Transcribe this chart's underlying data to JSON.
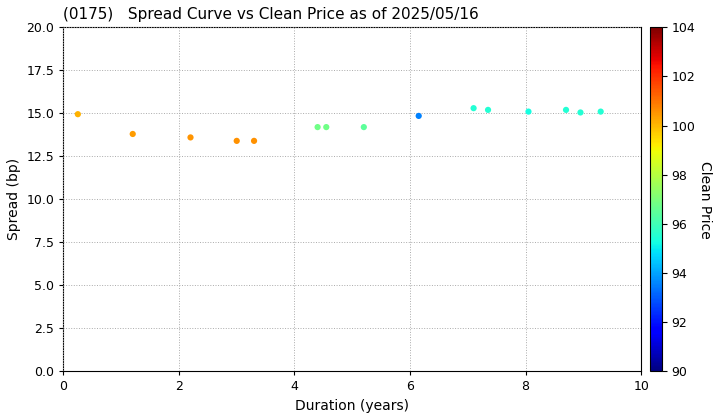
{
  "title": "(0175)   Spread Curve vs Clean Price as of 2025/05/16",
  "xlabel": "Duration (years)",
  "ylabel": "Spread (bp)",
  "colorbar_label": "Clean Price",
  "xlim": [
    0,
    10
  ],
  "ylim": [
    0.0,
    20.0
  ],
  "yticks": [
    0.0,
    2.5,
    5.0,
    7.5,
    10.0,
    12.5,
    15.0,
    17.5,
    20.0
  ],
  "xticks": [
    0,
    2,
    4,
    6,
    8,
    10
  ],
  "colorbar_min": 90,
  "colorbar_max": 104,
  "colorbar_ticks": [
    90,
    92,
    94,
    96,
    98,
    100,
    102,
    104
  ],
  "colormap": "jet",
  "points": [
    {
      "duration": 0.25,
      "spread": 14.95,
      "price": 100.1
    },
    {
      "duration": 1.2,
      "spread": 13.8,
      "price": 100.4
    },
    {
      "duration": 2.2,
      "spread": 13.6,
      "price": 100.5
    },
    {
      "duration": 3.0,
      "spread": 13.4,
      "price": 100.6
    },
    {
      "duration": 3.3,
      "spread": 13.4,
      "price": 100.6
    },
    {
      "duration": 4.4,
      "spread": 14.2,
      "price": 96.8
    },
    {
      "duration": 4.55,
      "spread": 14.2,
      "price": 96.8
    },
    {
      "duration": 5.2,
      "spread": 14.2,
      "price": 96.5
    },
    {
      "duration": 6.15,
      "spread": 14.85,
      "price": 93.5
    },
    {
      "duration": 7.1,
      "spread": 15.3,
      "price": 95.5
    },
    {
      "duration": 7.35,
      "spread": 15.2,
      "price": 95.5
    },
    {
      "duration": 8.05,
      "spread": 15.1,
      "price": 95.3
    },
    {
      "duration": 8.7,
      "spread": 15.2,
      "price": 95.5
    },
    {
      "duration": 8.95,
      "spread": 15.05,
      "price": 95.5
    },
    {
      "duration": 9.3,
      "spread": 15.1,
      "price": 95.5
    }
  ],
  "marker_size": 20,
  "background_color": "#ffffff",
  "grid_color": "#aaaaaa",
  "title_fontsize": 11,
  "axis_fontsize": 10,
  "tick_fontsize": 9
}
